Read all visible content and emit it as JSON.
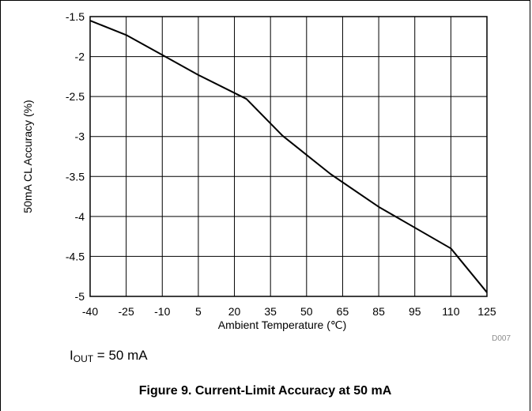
{
  "figure": {
    "caption": "Figure 9. Current-Limit Accuracy at 50 mA",
    "code": "D007",
    "condition": {
      "symbol": "I",
      "subscript": "OUT",
      "value": " = 50 mA"
    }
  },
  "chart_data": {
    "type": "line",
    "xlabel": "Ambient Temperature (℃)",
    "ylabel": "50mA CL Accuracy (%)",
    "xlim": [
      -40,
      125
    ],
    "ylim": [
      -5,
      -1.5
    ],
    "x_ticks": [
      -40,
      -25,
      -10,
      5,
      20,
      35,
      50,
      65,
      85,
      95,
      110,
      125
    ],
    "y_ticks": [
      -1.5,
      -2,
      -2.5,
      -3,
      -3.5,
      -4,
      -4.5,
      -5
    ],
    "grid": true,
    "legend": "none",
    "series": [
      {
        "color": "#000000",
        "x": [
          -40,
          -25,
          -10,
          5,
          25,
          40,
          60,
          85,
          110,
          125
        ],
        "y": [
          -1.55,
          -1.73,
          -1.98,
          -2.23,
          -2.53,
          -2.99,
          -3.47,
          -3.88,
          -4.4,
          -4.95
        ]
      }
    ]
  }
}
